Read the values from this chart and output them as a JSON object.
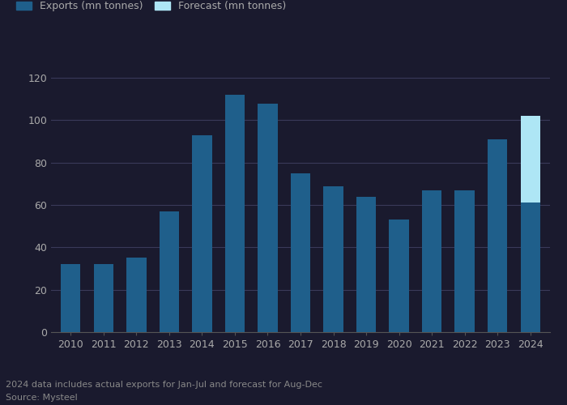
{
  "years": [
    2010,
    2011,
    2012,
    2013,
    2014,
    2015,
    2016,
    2017,
    2018,
    2019,
    2020,
    2021,
    2022,
    2023,
    2024
  ],
  "exports": [
    32,
    32,
    35,
    57,
    93,
    112,
    108,
    75,
    69,
    64,
    53,
    67,
    67,
    91,
    61
  ],
  "forecast": [
    0,
    0,
    0,
    0,
    0,
    0,
    0,
    0,
    0,
    0,
    0,
    0,
    0,
    0,
    41
  ],
  "export_color": "#1f5f8b",
  "forecast_color": "#aee6f5",
  "background_color": "#1a1a2e",
  "plot_bg_color": "#1a1a2e",
  "legend_exports": "Exports (mn tonnes)",
  "legend_forecast": "Forecast (mn tonnes)",
  "note": "2024 data includes actual exports for Jan-Jul and forecast for Aug-Dec",
  "source": "Source: Mysteel",
  "ylim": [
    0,
    130
  ],
  "yticks": [
    0,
    20,
    40,
    60,
    80,
    100,
    120
  ],
  "grid_color": "#3a3a5a",
  "tick_label_color": "#aaaaaa",
  "legend_text_color": "#aaaaaa",
  "note_color": "#888888",
  "spine_color": "#555555"
}
